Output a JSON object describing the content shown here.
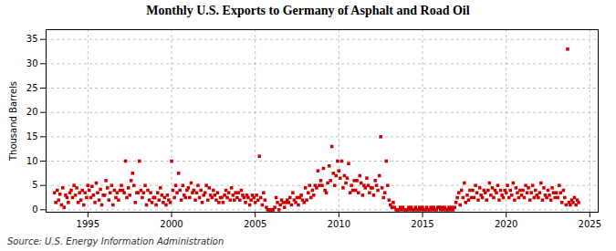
{
  "chart_data": {
    "type": "scatter",
    "title": "Monthly U.S. Exports to Germany of Asphalt and Road Oil",
    "ylabel": "Thousand Barrels",
    "source": "Source: U.S. Energy Information Administration",
    "color": "#cc0000",
    "marker": "square",
    "grid": true,
    "xlim": [
      1992.5,
      2025.5
    ],
    "ylim": [
      -0.5,
      37
    ],
    "xticks": [
      1995,
      2000,
      2005,
      2010,
      2015,
      2020,
      2025
    ],
    "yticks": [
      0,
      5,
      10,
      15,
      20,
      25,
      30,
      35
    ],
    "x": [
      1993.0,
      1993.08,
      1993.17,
      1993.25,
      1993.33,
      1993.42,
      1993.5,
      1993.58,
      1993.67,
      1993.75,
      1993.83,
      1993.92,
      1994.0,
      1994.08,
      1994.17,
      1994.25,
      1994.33,
      1994.42,
      1994.5,
      1994.58,
      1994.67,
      1994.75,
      1994.83,
      1994.92,
      1995.0,
      1995.08,
      1995.17,
      1995.25,
      1995.33,
      1995.42,
      1995.5,
      1995.58,
      1995.67,
      1995.75,
      1995.83,
      1995.92,
      1996.0,
      1996.08,
      1996.17,
      1996.25,
      1996.33,
      1996.42,
      1996.5,
      1996.58,
      1996.67,
      1996.75,
      1996.83,
      1996.92,
      1997.0,
      1997.08,
      1997.17,
      1997.25,
      1997.33,
      1997.42,
      1997.5,
      1997.58,
      1997.67,
      1997.75,
      1997.83,
      1997.92,
      1998.0,
      1998.08,
      1998.17,
      1998.25,
      1998.33,
      1998.42,
      1998.5,
      1998.58,
      1998.67,
      1998.75,
      1998.83,
      1998.92,
      1999.0,
      1999.08,
      1999.17,
      1999.25,
      1999.33,
      1999.42,
      1999.5,
      1999.58,
      1999.67,
      1999.75,
      1999.83,
      1999.92,
      2000.0,
      2000.08,
      2000.17,
      2000.25,
      2000.33,
      2000.42,
      2000.5,
      2000.58,
      2000.67,
      2000.75,
      2000.83,
      2000.92,
      2001.0,
      2001.08,
      2001.17,
      2001.25,
      2001.33,
      2001.42,
      2001.5,
      2001.58,
      2001.67,
      2001.75,
      2001.83,
      2001.92,
      2002.0,
      2002.08,
      2002.17,
      2002.25,
      2002.33,
      2002.42,
      2002.5,
      2002.58,
      2002.67,
      2002.75,
      2002.83,
      2002.92,
      2003.0,
      2003.08,
      2003.17,
      2003.25,
      2003.33,
      2003.42,
      2003.5,
      2003.58,
      2003.67,
      2003.75,
      2003.83,
      2003.92,
      2004.0,
      2004.08,
      2004.17,
      2004.25,
      2004.33,
      2004.42,
      2004.5,
      2004.58,
      2004.67,
      2004.75,
      2004.83,
      2004.92,
      2005.0,
      2005.08,
      2005.17,
      2005.25,
      2005.33,
      2005.42,
      2005.5,
      2005.58,
      2005.67,
      2005.75,
      2005.83,
      2005.92,
      2006.0,
      2006.08,
      2006.17,
      2006.25,
      2006.33,
      2006.42,
      2006.5,
      2006.58,
      2006.67,
      2006.75,
      2006.83,
      2006.92,
      2007.0,
      2007.08,
      2007.17,
      2007.25,
      2007.33,
      2007.42,
      2007.5,
      2007.58,
      2007.67,
      2007.75,
      2007.83,
      2007.92,
      2008.0,
      2008.08,
      2008.17,
      2008.25,
      2008.33,
      2008.42,
      2008.5,
      2008.58,
      2008.67,
      2008.75,
      2008.83,
      2008.92,
      2009.0,
      2009.08,
      2009.17,
      2009.25,
      2009.33,
      2009.42,
      2009.5,
      2009.58,
      2009.67,
      2009.75,
      2009.83,
      2009.92,
      2010.0,
      2010.08,
      2010.17,
      2010.25,
      2010.33,
      2010.42,
      2010.5,
      2010.58,
      2010.67,
      2010.75,
      2010.83,
      2010.92,
      2011.0,
      2011.08,
      2011.17,
      2011.25,
      2011.33,
      2011.42,
      2011.5,
      2011.58,
      2011.67,
      2011.75,
      2011.83,
      2011.92,
      2012.0,
      2012.08,
      2012.17,
      2012.25,
      2012.33,
      2012.42,
      2012.5,
      2012.58,
      2012.67,
      2012.75,
      2012.83,
      2012.92,
      2013.0,
      2013.08,
      2013.17,
      2013.25,
      2013.33,
      2013.42,
      2013.5,
      2013.58,
      2013.67,
      2013.75,
      2013.83,
      2013.92,
      2014.0,
      2014.08,
      2014.17,
      2014.25,
      2014.33,
      2014.42,
      2014.5,
      2014.58,
      2014.67,
      2014.75,
      2014.83,
      2014.92,
      2015.0,
      2015.08,
      2015.17,
      2015.25,
      2015.33,
      2015.42,
      2015.5,
      2015.58,
      2015.67,
      2015.75,
      2015.83,
      2015.92,
      2016.0,
      2016.08,
      2016.17,
      2016.25,
      2016.33,
      2016.42,
      2016.5,
      2016.58,
      2016.67,
      2016.75,
      2016.83,
      2016.92,
      2017.0,
      2017.08,
      2017.17,
      2017.25,
      2017.33,
      2017.42,
      2017.5,
      2017.58,
      2017.67,
      2017.75,
      2017.83,
      2017.92,
      2018.0,
      2018.08,
      2018.17,
      2018.25,
      2018.33,
      2018.42,
      2018.5,
      2018.58,
      2018.67,
      2018.75,
      2018.83,
      2018.92,
      2019.0,
      2019.08,
      2019.17,
      2019.25,
      2019.33,
      2019.42,
      2019.5,
      2019.58,
      2019.67,
      2019.75,
      2019.83,
      2019.92,
      2020.0,
      2020.08,
      2020.17,
      2020.25,
      2020.33,
      2020.42,
      2020.5,
      2020.58,
      2020.67,
      2020.75,
      2020.83,
      2020.92,
      2021.0,
      2021.08,
      2021.17,
      2021.25,
      2021.33,
      2021.42,
      2021.5,
      2021.58,
      2021.67,
      2021.75,
      2021.83,
      2021.92,
      2022.0,
      2022.08,
      2022.17,
      2022.25,
      2022.33,
      2022.42,
      2022.5,
      2022.58,
      2022.67,
      2022.75,
      2022.83,
      2022.92,
      2023.0,
      2023.08,
      2023.17,
      2023.25,
      2023.33,
      2023.42,
      2023.5,
      2023.58,
      2023.67,
      2023.75,
      2023.83,
      2023.92,
      2024.0,
      2024.08,
      2024.17,
      2024.25,
      2024.33
    ],
    "values": [
      3.5,
      1.5,
      4.0,
      2.0,
      3.2,
      1.0,
      4.5,
      0.5,
      3.0,
      2.5,
      1.5,
      3.5,
      4.0,
      2.5,
      5.0,
      3.0,
      4.5,
      1.5,
      3.5,
      2.0,
      4.0,
      1.0,
      3.5,
      2.5,
      5.0,
      4.0,
      2.5,
      4.8,
      3.0,
      1.5,
      5.5,
      3.5,
      2.0,
      4.2,
      1.0,
      3.0,
      3.0,
      6.0,
      4.5,
      2.0,
      3.5,
      5.0,
      1.0,
      4.0,
      2.5,
      3.5,
      2.0,
      4.0,
      5.0,
      4.0,
      3.5,
      10.0,
      2.5,
      4.5,
      3.0,
      6.0,
      7.5,
      5.0,
      1.5,
      3.5,
      3.5,
      10.0,
      4.0,
      2.5,
      3.5,
      5.0,
      1.0,
      4.0,
      2.0,
      3.5,
      1.5,
      2.5,
      2.5,
      1.0,
      3.5,
      2.0,
      4.5,
      3.0,
      1.5,
      2.5,
      1.0,
      3.0,
      2.0,
      1.5,
      10.0,
      4.0,
      2.5,
      5.0,
      3.5,
      7.5,
      4.0,
      2.0,
      5.0,
      3.0,
      2.5,
      4.0,
      4.5,
      2.5,
      5.5,
      3.5,
      4.0,
      2.0,
      3.5,
      5.0,
      2.5,
      4.0,
      1.5,
      3.0,
      3.5,
      5.0,
      2.0,
      4.5,
      3.0,
      2.5,
      4.0,
      3.0,
      2.0,
      3.5,
      1.5,
      2.5,
      2.5,
      1.5,
      3.0,
      4.0,
      2.5,
      3.5,
      2.0,
      4.5,
      3.0,
      2.0,
      3.5,
      2.5,
      3.5,
      2.0,
      4.0,
      3.0,
      2.5,
      1.5,
      3.0,
      2.5,
      1.0,
      2.0,
      3.0,
      2.5,
      1.5,
      3.0,
      2.0,
      11.0,
      2.5,
      1.0,
      3.5,
      2.0,
      0.5,
      0.0,
      0.0,
      0.0,
      0.0,
      0.0,
      0.5,
      2.5,
      1.5,
      0.0,
      1.0,
      2.0,
      1.5,
      0.5,
      1.5,
      2.0,
      1.5,
      2.5,
      1.0,
      3.5,
      2.0,
      1.5,
      2.5,
      1.0,
      2.5,
      3.0,
      2.0,
      1.5,
      4.5,
      2.0,
      3.5,
      5.0,
      2.5,
      4.0,
      3.0,
      5.0,
      4.5,
      8.0,
      5.0,
      6.0,
      5.0,
      8.5,
      4.0,
      3.5,
      5.5,
      9.0,
      6.0,
      13.0,
      7.5,
      5.0,
      7.0,
      10.0,
      8.0,
      6.5,
      10.0,
      4.5,
      7.0,
      5.5,
      6.5,
      9.5,
      3.5,
      5.0,
      4.0,
      6.0,
      4.0,
      6.0,
      3.5,
      7.0,
      5.5,
      3.0,
      5.0,
      4.5,
      6.5,
      5.0,
      3.5,
      4.5,
      4.5,
      3.0,
      6.0,
      5.0,
      4.0,
      7.0,
      15.0,
      4.5,
      2.5,
      3.5,
      10.0,
      5.0,
      2.0,
      1.0,
      0.5,
      1.5,
      0.5,
      0.0,
      0.0,
      0.0,
      0.5,
      0.0,
      0.5,
      0.0,
      0.0,
      0.0,
      0.5,
      0.0,
      0.5,
      0.0,
      0.0,
      0.5,
      0.0,
      0.0,
      0.5,
      0.0,
      0.5,
      0.0,
      0.0,
      0.5,
      0.0,
      0.0,
      0.5,
      0.0,
      0.5,
      0.0,
      0.0,
      0.5,
      0.5,
      0.0,
      0.5,
      0.0,
      0.5,
      0.0,
      0.0,
      0.5,
      0.0,
      0.5,
      0.0,
      0.5,
      1.5,
      2.5,
      3.5,
      1.0,
      4.0,
      2.5,
      5.5,
      1.5,
      3.0,
      2.0,
      4.0,
      2.5,
      4.0,
      2.5,
      5.0,
      3.5,
      2.0,
      4.5,
      3.0,
      2.5,
      4.0,
      3.5,
      2.0,
      4.0,
      5.5,
      3.0,
      4.5,
      2.5,
      4.0,
      3.5,
      5.0,
      2.0,
      4.0,
      3.0,
      2.5,
      4.0,
      3.5,
      5.0,
      2.5,
      4.0,
      3.0,
      5.5,
      2.0,
      4.5,
      3.5,
      2.5,
      4.0,
      3.0,
      4.0,
      2.5,
      5.0,
      3.5,
      4.5,
      2.0,
      3.5,
      5.0,
      2.5,
      4.0,
      3.0,
      2.5,
      3.5,
      5.5,
      2.0,
      4.5,
      3.0,
      2.5,
      4.0,
      3.0,
      2.0,
      4.5,
      3.5,
      2.5,
      3.5,
      2.5,
      5.0,
      3.5,
      1.5,
      4.0,
      2.5,
      1.0,
      33.0,
      1.5,
      1.0,
      2.0,
      1.5,
      2.5,
      1.0,
      2.0,
      1.5
    ]
  }
}
